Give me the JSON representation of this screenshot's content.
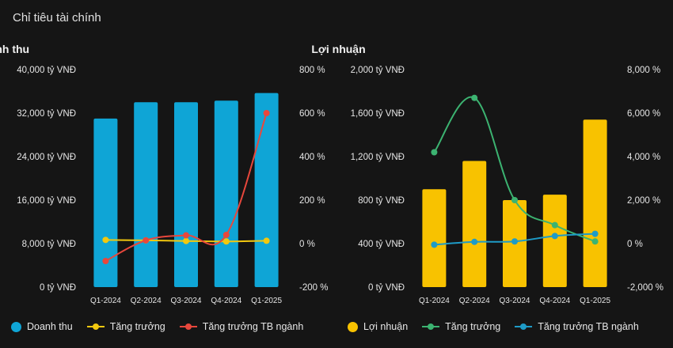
{
  "page": {
    "title": "Chỉ tiêu tài chính"
  },
  "chart_data": [
    {
      "type": "bar",
      "title": "Doanh thu",
      "categories": [
        "Q1-2024",
        "Q2-2024",
        "Q3-2024",
        "Q4-2024",
        "Q1-2025"
      ],
      "left_axis": {
        "ticks": [
          "0 tỷ VNĐ",
          "8,000 tỷ VNĐ",
          "16,000 tỷ VNĐ",
          "24,000 tỷ VNĐ",
          "32,000 tỷ VNĐ",
          "40,000 tỷ VNĐ"
        ],
        "ylim": [
          0,
          40000
        ]
      },
      "right_axis": {
        "ticks": [
          "-200 %",
          "0 %",
          "200 %",
          "400 %",
          "600 %",
          "800 %"
        ],
        "ylim": [
          -200,
          800
        ]
      },
      "series": [
        {
          "name": "Doanh thu",
          "kind": "bar",
          "axis": "left",
          "color": "#0fa5d6",
          "values": [
            31000,
            34000,
            34000,
            34300,
            35700
          ]
        },
        {
          "name": "Tăng trưởng",
          "kind": "line",
          "axis": "right",
          "color": "#f2c80f",
          "values": [
            17,
            15,
            12,
            10,
            13
          ]
        },
        {
          "name": "Tăng trưởng TB ngành",
          "kind": "line",
          "axis": "right",
          "color": "#e8473c",
          "values": [
            -80,
            15,
            38,
            40,
            600
          ]
        }
      ],
      "grid": false,
      "legend": "bottom"
    },
    {
      "type": "bar",
      "title": "Lợi nhuận",
      "categories": [
        "Q1-2024",
        "Q2-2024",
        "Q3-2024",
        "Q4-2024",
        "Q1-2025"
      ],
      "left_axis": {
        "ticks": [
          "0 tỷ VNĐ",
          "400 tỷ VNĐ",
          "800 tỷ VNĐ",
          "1,200 tỷ VNĐ",
          "1,600 tỷ VNĐ",
          "2,000 tỷ VNĐ"
        ],
        "ylim": [
          0,
          2000
        ]
      },
      "right_axis": {
        "ticks": [
          "-2,000 %",
          "0 %",
          "2,000 %",
          "4,000 %",
          "6,000 %",
          "8,000 %"
        ],
        "ylim": [
          -2000,
          8000
        ]
      },
      "series": [
        {
          "name": "Lợi nhuận",
          "kind": "bar",
          "axis": "left",
          "color": "#f8c200",
          "values": [
            900,
            1160,
            800,
            850,
            1540
          ]
        },
        {
          "name": "Tăng trưởng",
          "kind": "line",
          "axis": "right",
          "color": "#3cb371",
          "values": [
            4200,
            6700,
            2000,
            850,
            100
          ]
        },
        {
          "name": "Tăng trưởng TB ngành",
          "kind": "line",
          "axis": "right",
          "color": "#1e9bc7",
          "values": [
            -50,
            80,
            100,
            350,
            450
          ]
        }
      ],
      "grid": false,
      "legend": "bottom"
    }
  ]
}
